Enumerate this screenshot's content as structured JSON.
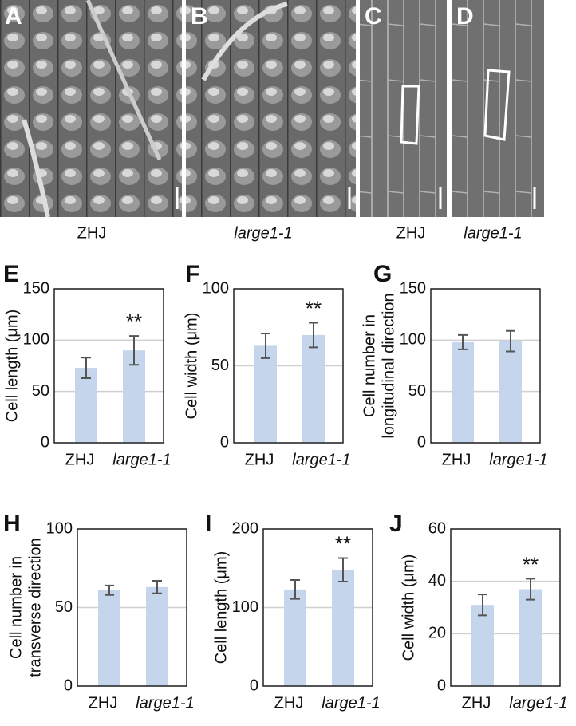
{
  "images": [
    {
      "letter": "A",
      "caption": "ZHJ"
    },
    {
      "letter": "B",
      "caption": "large1-1"
    },
    {
      "letter": "C",
      "caption": "ZHJ"
    },
    {
      "letter": "D",
      "caption": "large1-1"
    }
  ],
  "chart_data": [
    {
      "type": "bar",
      "letter": "E",
      "ylabel": [
        "Cell length (μm)"
      ],
      "categories": [
        "ZHJ",
        "large1-1"
      ],
      "values": [
        73,
        90
      ],
      "errors": [
        10,
        14
      ],
      "significance": [
        null,
        "**"
      ],
      "ylim": [
        0,
        150
      ],
      "yticks": [
        0,
        50,
        100,
        150
      ],
      "grid": true,
      "color": "#c5d5ec"
    },
    {
      "type": "bar",
      "letter": "F",
      "ylabel": [
        "Cell width (μm)"
      ],
      "categories": [
        "ZHJ",
        "large1-1"
      ],
      "values": [
        63,
        70
      ],
      "errors": [
        8,
        8
      ],
      "significance": [
        null,
        "**"
      ],
      "ylim": [
        0,
        100
      ],
      "yticks": [
        0,
        50,
        100
      ],
      "grid": true,
      "color": "#c5d5ec"
    },
    {
      "type": "bar",
      "letter": "G",
      "ylabel": [
        "Cell number in",
        "longitudinal direction"
      ],
      "categories": [
        "ZHJ",
        "large1-1"
      ],
      "values": [
        98,
        99
      ],
      "errors": [
        7,
        10
      ],
      "significance": [
        null,
        null
      ],
      "ylim": [
        0,
        150
      ],
      "yticks": [
        0,
        50,
        100,
        150
      ],
      "grid": true,
      "color": "#c5d5ec"
    },
    {
      "type": "bar",
      "letter": "H",
      "ylabel": [
        "Cell number in",
        "transverse direction"
      ],
      "categories": [
        "ZHJ",
        "large1-1"
      ],
      "values": [
        61,
        63
      ],
      "errors": [
        3,
        4
      ],
      "significance": [
        null,
        null
      ],
      "ylim": [
        0,
        100
      ],
      "yticks": [
        0,
        50,
        100
      ],
      "grid": true,
      "color": "#c5d5ec"
    },
    {
      "type": "bar",
      "letter": "I",
      "ylabel": [
        "Cell length (μm)"
      ],
      "categories": [
        "ZHJ",
        "large1-1"
      ],
      "values": [
        123,
        148
      ],
      "errors": [
        12,
        15
      ],
      "significance": [
        null,
        "**"
      ],
      "ylim": [
        0,
        200
      ],
      "yticks": [
        0,
        100,
        200
      ],
      "grid": true,
      "color": "#c5d5ec"
    },
    {
      "type": "bar",
      "letter": "J",
      "ylabel": [
        "Cell width (μm)"
      ],
      "categories": [
        "ZHJ",
        "large1-1"
      ],
      "values": [
        31,
        37
      ],
      "errors": [
        4,
        4
      ],
      "significance": [
        null,
        "**"
      ],
      "ylim": [
        0,
        60
      ],
      "yticks": [
        0,
        20,
        40,
        60
      ],
      "grid": true,
      "color": "#c5d5ec"
    }
  ]
}
